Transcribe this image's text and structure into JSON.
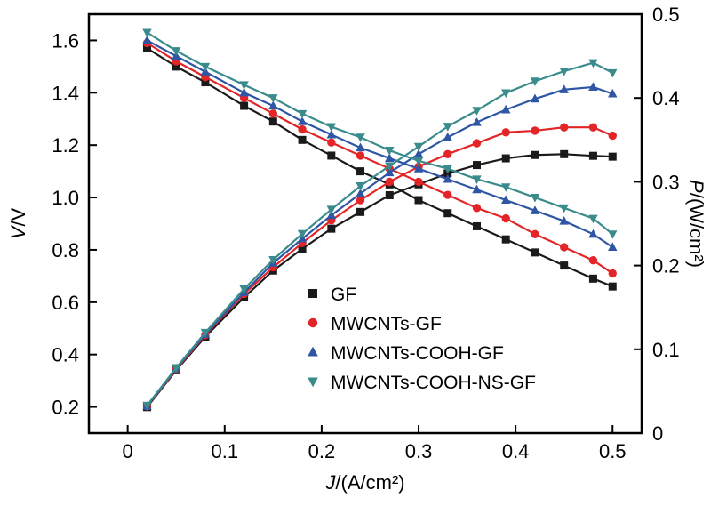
{
  "chart_data": {
    "type": "line",
    "title": "",
    "xlabel": {
      "variable": "J",
      "unit": "/(A/cm²)"
    },
    "ylabel_left": {
      "variable": "V",
      "unit": "/V"
    },
    "ylabel_right": {
      "variable": "P",
      "unit": "/(W/cm²)"
    },
    "x_range": [
      -0.04,
      0.53
    ],
    "y_left_range": [
      0.1,
      1.7
    ],
    "y_right_range": [
      0,
      0.5
    ],
    "x_ticks": [
      0,
      0.1,
      0.2,
      0.3,
      0.4,
      0.5
    ],
    "x_tick_labels": [
      "0",
      "0.1",
      "0.2",
      "0.3",
      "0.4",
      "0.5"
    ],
    "y_left_ticks": [
      0.2,
      0.4,
      0.6,
      0.8,
      1.0,
      1.2,
      1.4,
      1.6
    ],
    "y_left_tick_labels": [
      "0.2",
      "0.4",
      "0.6",
      "0.8",
      "1.0",
      "1.2",
      "1.4",
      "1.6"
    ],
    "y_right_ticks": [
      0,
      0.1,
      0.2,
      0.3,
      0.4,
      0.5
    ],
    "y_right_tick_labels": [
      "0",
      "0.1",
      "0.2",
      "0.3",
      "0.4",
      "0.5"
    ],
    "grid": false,
    "legend_position": "inside-bottom-center",
    "x": [
      0.02,
      0.05,
      0.08,
      0.12,
      0.15,
      0.18,
      0.21,
      0.24,
      0.27,
      0.3,
      0.33,
      0.36,
      0.39,
      0.42,
      0.45,
      0.48,
      0.5
    ],
    "series": [
      {
        "name": "GF",
        "color": "#1a1a1a",
        "marker": "square",
        "voltage": [
          1.57,
          1.5,
          1.44,
          1.35,
          1.29,
          1.22,
          1.16,
          1.1,
          1.05,
          0.99,
          0.94,
          0.89,
          0.84,
          0.79,
          0.74,
          0.69,
          0.66
        ],
        "power": [
          0.031,
          0.075,
          0.115,
          0.162,
          0.194,
          0.22,
          0.244,
          0.264,
          0.284,
          0.297,
          0.31,
          0.32,
          0.328,
          0.332,
          0.333,
          0.331,
          0.33
        ]
      },
      {
        "name": "MWCNTs-GF",
        "color": "#e42527",
        "marker": "circle",
        "voltage": [
          1.59,
          1.52,
          1.46,
          1.38,
          1.32,
          1.26,
          1.21,
          1.16,
          1.11,
          1.06,
          1.01,
          0.96,
          0.92,
          0.86,
          0.81,
          0.76,
          0.71
        ],
        "power": [
          0.032,
          0.076,
          0.117,
          0.166,
          0.198,
          0.227,
          0.254,
          0.278,
          0.3,
          0.318,
          0.333,
          0.346,
          0.359,
          0.361,
          0.365,
          0.365,
          0.355
        ]
      },
      {
        "name": "MWCNTs-COOH-GF",
        "color": "#2e56a5",
        "marker": "triangle-up",
        "voltage": [
          1.6,
          1.54,
          1.48,
          1.4,
          1.35,
          1.29,
          1.24,
          1.19,
          1.15,
          1.11,
          1.07,
          1.03,
          0.99,
          0.95,
          0.91,
          0.86,
          0.81
        ],
        "power": [
          0.032,
          0.077,
          0.118,
          0.168,
          0.203,
          0.232,
          0.26,
          0.286,
          0.311,
          0.333,
          0.353,
          0.371,
          0.386,
          0.399,
          0.41,
          0.413,
          0.405
        ]
      },
      {
        "name": "MWCNTs-COOH-NS-GF",
        "color": "#3a8c8c",
        "marker": "triangle-down",
        "voltage": [
          1.63,
          1.56,
          1.5,
          1.43,
          1.38,
          1.32,
          1.27,
          1.23,
          1.18,
          1.14,
          1.11,
          1.07,
          1.04,
          1.0,
          0.96,
          0.92,
          0.86
        ],
        "power": [
          0.033,
          0.078,
          0.12,
          0.172,
          0.207,
          0.238,
          0.267,
          0.295,
          0.319,
          0.342,
          0.366,
          0.385,
          0.406,
          0.42,
          0.432,
          0.442,
          0.43
        ]
      }
    ]
  }
}
